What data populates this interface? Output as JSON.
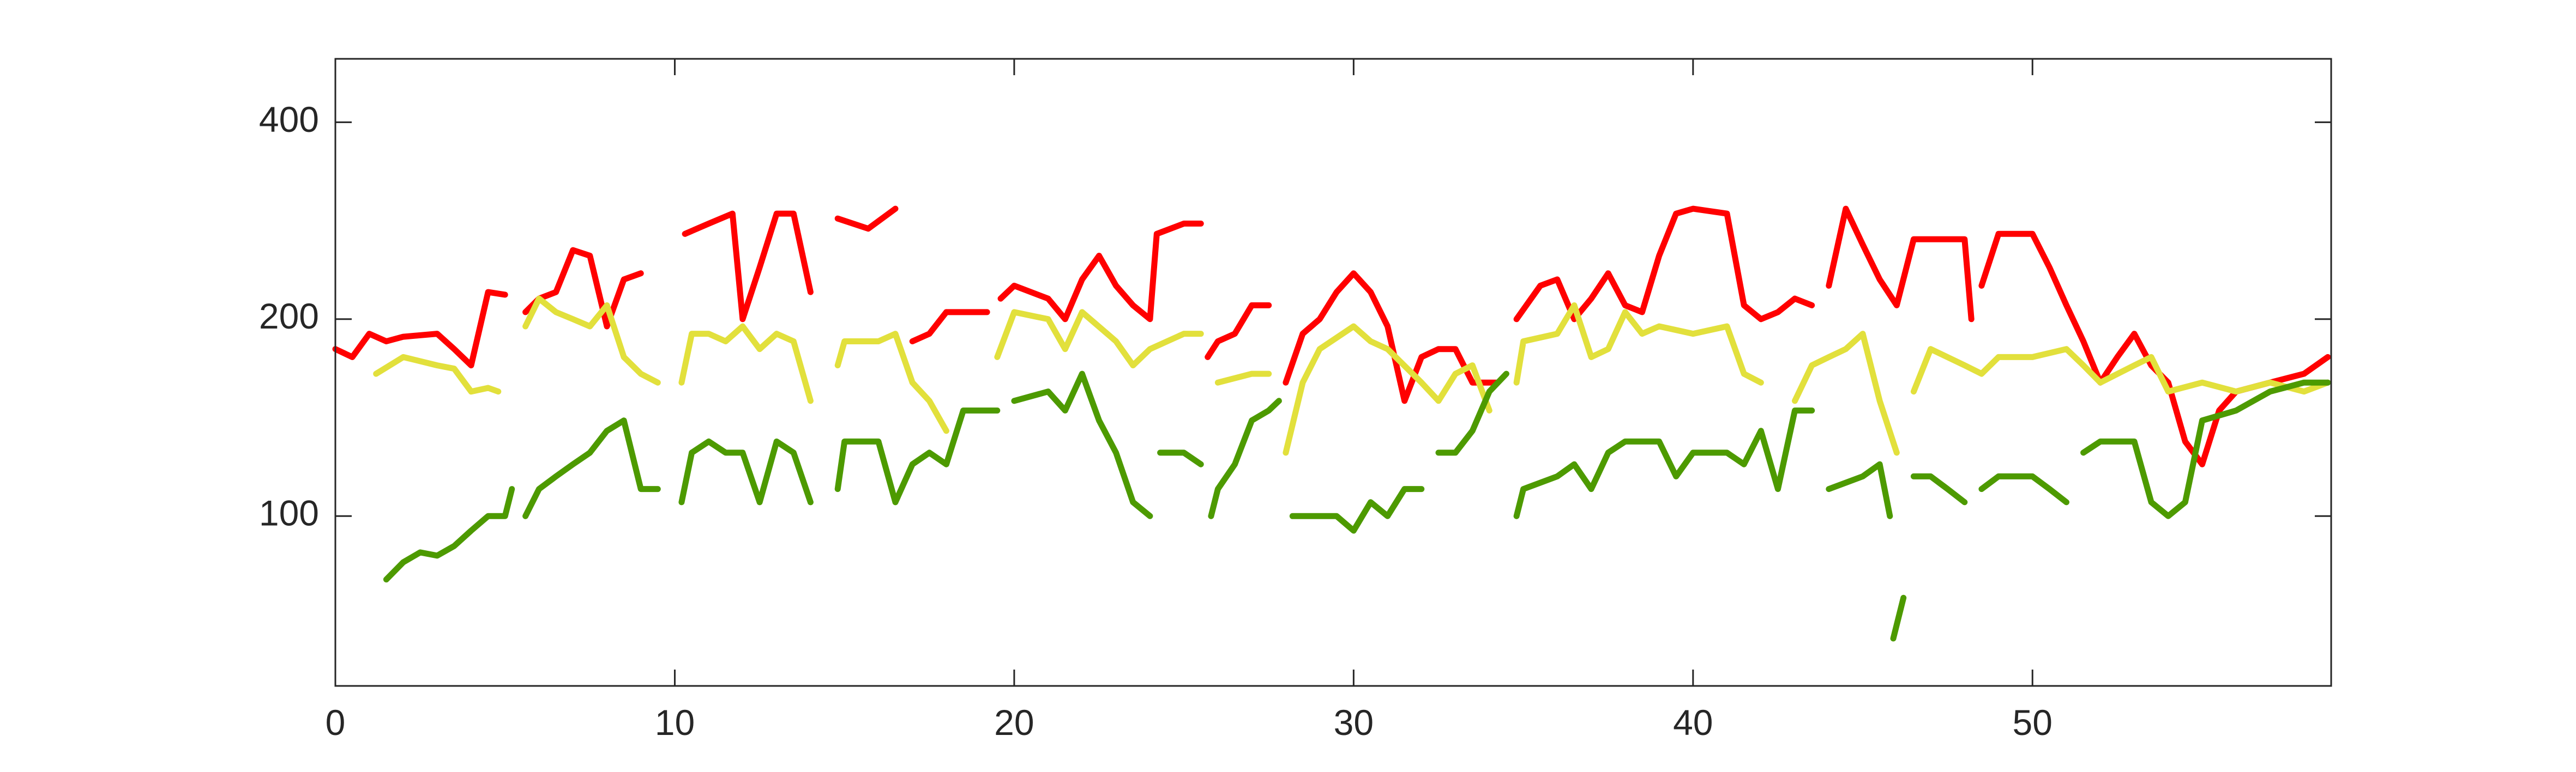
{
  "chart_data": {
    "type": "line",
    "log_y": true,
    "xlim": [
      0,
      58.8
    ],
    "xticks": [
      0,
      10,
      20,
      30,
      40,
      50
    ],
    "ylim": [
      55,
      500
    ],
    "yticks": [
      100,
      200,
      400
    ],
    "series": [
      {
        "color": "#ff0000",
        "x": [
          0,
          0.5,
          1,
          1.5,
          2,
          3,
          3.5,
          4,
          4.5,
          5,
          5.3,
          5.6,
          6,
          6.5,
          7,
          7.5,
          8,
          8.5,
          9,
          9.8,
          10.3,
          11,
          11.7,
          12,
          12.5,
          13,
          13.5,
          14,
          14.4,
          14.8,
          15.7,
          16.5,
          16.7,
          17,
          17.5,
          18,
          18.5,
          19.2,
          19.4,
          19.6,
          20,
          21,
          21.5,
          22,
          22.5,
          23,
          23.5,
          24,
          24.2,
          25,
          25.5,
          25.6,
          25.7,
          26,
          26.5,
          27,
          27.5,
          27.8,
          28,
          28.5,
          29,
          29.5,
          30,
          30.5,
          31,
          31.5,
          32,
          32.5,
          33,
          33.5,
          34.2,
          34.5,
          34.8,
          35.5,
          36,
          36.5,
          37,
          37.5,
          38,
          38.5,
          39,
          39.5,
          40,
          41,
          41.5,
          42,
          42.5,
          43,
          43.5,
          43.7,
          44,
          44.5,
          45,
          45.5,
          46,
          46.5,
          47,
          48,
          48.2,
          48.35,
          48.5,
          49,
          50,
          50.5,
          51,
          51.5,
          52,
          52.5,
          53,
          53.5,
          54,
          54.5,
          55,
          55.5,
          56,
          57,
          58,
          58.7
        ],
        "values": [
          180,
          175,
          190,
          185,
          188,
          190,
          180,
          170,
          220,
          218,
          null,
          205,
          215,
          220,
          255,
          250,
          195,
          230,
          235,
          null,
          270,
          280,
          290,
          200,
          240,
          290,
          290,
          220,
          null,
          285,
          275,
          295,
          null,
          185,
          190,
          205,
          205,
          205,
          null,
          215,
          225,
          215,
          200,
          230,
          250,
          225,
          210,
          200,
          270,
          280,
          280,
          null,
          175,
          185,
          190,
          210,
          210,
          null,
          160,
          190,
          200,
          220,
          235,
          220,
          195,
          150,
          175,
          180,
          180,
          160,
          160,
          null,
          200,
          225,
          230,
          200,
          215,
          235,
          210,
          205,
          250,
          290,
          295,
          290,
          210,
          200,
          205,
          215,
          210,
          null,
          225,
          295,
          260,
          230,
          210,
          265,
          265,
          265,
          200,
          null,
          225,
          270,
          270,
          240,
          210,
          185,
          160,
          175,
          190,
          170,
          160,
          130,
          120,
          145,
          155,
          160,
          165,
          175
        ]
      },
      {
        "color": "#e2e03c",
        "x": [
          1.2,
          2,
          3,
          3.5,
          4,
          4.5,
          4.8,
          5.2,
          5.6,
          6,
          6.5,
          7,
          7.5,
          8,
          8.5,
          9,
          9.5,
          9.9,
          10.2,
          10.5,
          11,
          11.5,
          12,
          12.5,
          13,
          13.5,
          14,
          14.4,
          14.8,
          15,
          16,
          16.5,
          17,
          17.5,
          18,
          18.8,
          19.5,
          20,
          21,
          21.5,
          22,
          23,
          23.5,
          24,
          25,
          25.5,
          25.7,
          26,
          27,
          27.5,
          27.8,
          28,
          28.5,
          29,
          30,
          30.5,
          31,
          32,
          32.5,
          33,
          33.5,
          34,
          34.4,
          34.8,
          35,
          36,
          36.5,
          37,
          37.5,
          38,
          38.5,
          39,
          40,
          41,
          41.5,
          42,
          42.5,
          43,
          43.5,
          44,
          44.5,
          45,
          45.5,
          46,
          46.3,
          46.5,
          47,
          48,
          48.5,
          49,
          50,
          51,
          51.5,
          52,
          53,
          53.5,
          54,
          55,
          56,
          57,
          58,
          58.7
        ],
        "values": [
          165,
          175,
          170,
          168,
          155,
          157,
          155,
          null,
          195,
          215,
          205,
          200,
          195,
          210,
          175,
          165,
          160,
          null,
          160,
          190,
          190,
          185,
          195,
          180,
          190,
          185,
          150,
          null,
          170,
          185,
          185,
          190,
          160,
          150,
          135,
          null,
          175,
          205,
          200,
          180,
          205,
          185,
          170,
          180,
          190,
          190,
          null,
          160,
          165,
          165,
          null,
          125,
          160,
          180,
          195,
          185,
          180,
          160,
          150,
          165,
          170,
          145,
          null,
          160,
          185,
          190,
          210,
          175,
          180,
          205,
          190,
          195,
          190,
          195,
          165,
          160,
          null,
          150,
          170,
          175,
          180,
          190,
          150,
          125,
          null,
          155,
          180,
          170,
          165,
          175,
          175,
          180,
          170,
          160,
          170,
          175,
          155,
          160,
          155,
          160,
          155,
          160
        ]
      },
      {
        "color": "#4d9a00",
        "x": [
          1.5,
          2,
          2.5,
          3,
          3.5,
          4,
          4.5,
          5,
          5.2,
          5.4,
          5.6,
          6,
          6.5,
          7,
          7.5,
          8,
          8.5,
          9,
          9.5,
          9.9,
          10.2,
          10.5,
          11,
          11.5,
          12,
          12.5,
          13,
          13.5,
          14,
          14.4,
          14.8,
          15,
          16,
          16.5,
          17,
          17.5,
          18,
          18.5,
          19,
          19.5,
          19.8,
          20,
          21,
          21.5,
          22,
          22.5,
          23,
          23.5,
          24,
          24.15,
          24.3,
          25,
          25.5,
          25.65,
          25.8,
          26,
          26.5,
          27,
          27.5,
          27.8,
          28,
          28.2,
          29,
          29.5,
          30,
          30.5,
          31,
          31.5,
          32,
          32.25,
          32.5,
          33,
          33.5,
          34,
          34.5,
          34.65,
          34.8,
          35,
          36,
          36.5,
          37,
          37.5,
          38,
          39,
          39.5,
          40,
          41,
          41.5,
          42,
          42.5,
          43,
          43.5,
          43.75,
          44,
          45,
          45.5,
          45.8,
          45.85,
          45.9,
          46.2,
          46.35,
          46.5,
          47,
          47.5,
          48,
          48.25,
          48.5,
          49,
          50,
          50.5,
          51,
          51.25,
          51.5,
          52,
          53,
          53.5,
          54,
          54.5,
          55,
          56,
          57,
          58,
          58.7
        ],
        "values": [
          80,
          85,
          88,
          87,
          90,
          95,
          100,
          100,
          110,
          null,
          100,
          110,
          115,
          120,
          125,
          135,
          140,
          110,
          110,
          null,
          105,
          125,
          130,
          125,
          125,
          105,
          130,
          125,
          105,
          null,
          110,
          130,
          130,
          105,
          120,
          125,
          120,
          145,
          145,
          145,
          null,
          150,
          155,
          145,
          165,
          140,
          125,
          105,
          100,
          null,
          125,
          125,
          120,
          null,
          100,
          110,
          120,
          140,
          145,
          150,
          null,
          100,
          100,
          100,
          95,
          105,
          100,
          110,
          110,
          null,
          125,
          125,
          135,
          155,
          165,
          null,
          100,
          110,
          115,
          120,
          110,
          125,
          130,
          130,
          115,
          125,
          125,
          120,
          135,
          110,
          145,
          145,
          null,
          110,
          115,
          120,
          100,
          null,
          65,
          75,
          null,
          115,
          115,
          110,
          105,
          null,
          110,
          115,
          115,
          110,
          105,
          null,
          125,
          130,
          130,
          105,
          100,
          105,
          140,
          145,
          155,
          160,
          160
        ]
      }
    ]
  }
}
